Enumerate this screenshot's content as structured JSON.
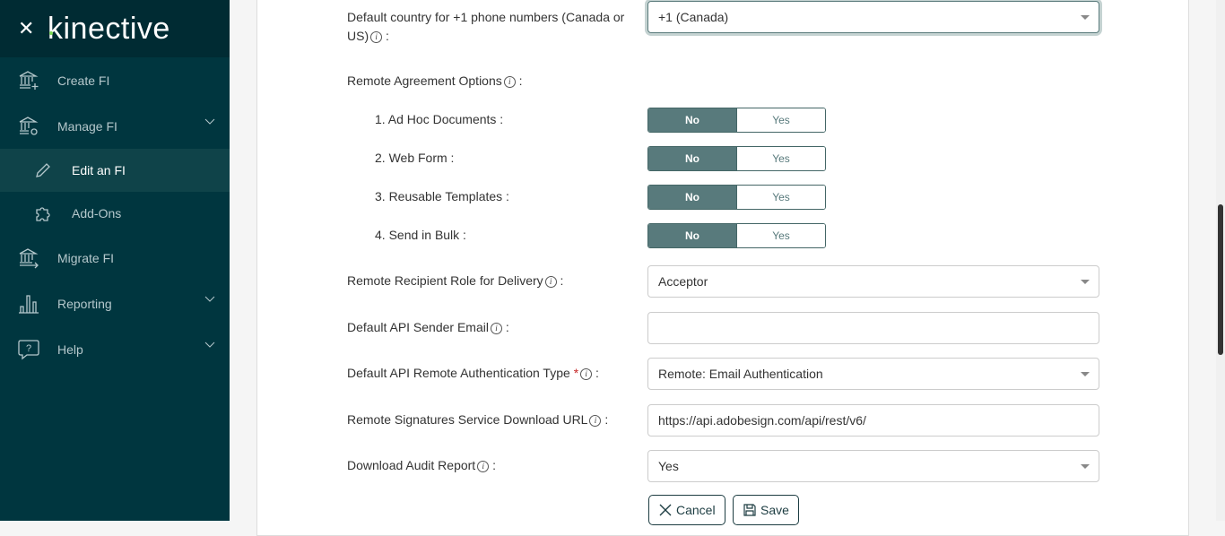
{
  "brand": {
    "name": "kinective",
    "close_icon": "close-icon"
  },
  "sidebar": {
    "items": [
      {
        "label": "Create FI",
        "icon": "bank-plus-icon"
      },
      {
        "label": "Manage FI",
        "icon": "bank-gear-icon",
        "expandable": true
      },
      {
        "label": "Edit an FI",
        "icon": "pencil-icon",
        "active": true
      },
      {
        "label": "Add-Ons",
        "icon": "puzzle-icon"
      },
      {
        "label": "Migrate FI",
        "icon": "bank-arrow-icon"
      },
      {
        "label": "Reporting",
        "icon": "bar-chart-icon",
        "expandable": true
      },
      {
        "label": "Help",
        "icon": "help-icon",
        "expandable": true
      }
    ]
  },
  "form": {
    "country": {
      "label1": "Default country for +1 phone numbers (Canada or",
      "label2": "US)",
      "sep": ":",
      "value": "+1 (Canada)"
    },
    "remote_options": {
      "label": "Remote Agreement Options",
      "sep": ":",
      "items": [
        {
          "label": "1. Ad Hoc Documents :",
          "selected": "No"
        },
        {
          "label": "2. Web Form :",
          "selected": "No"
        },
        {
          "label": "3. Reusable Templates :",
          "selected": "No"
        },
        {
          "label": "4. Send in Bulk :",
          "selected": "No"
        }
      ],
      "no": "No",
      "yes": "Yes"
    },
    "role": {
      "label": "Remote Recipient Role for Delivery",
      "sep": ":",
      "value": "Acceptor"
    },
    "sender_email": {
      "label": "Default API Sender Email",
      "sep": ":",
      "value": ""
    },
    "auth_type": {
      "label": "Default API Remote Authentication Type",
      "required": "*",
      "sep": ":",
      "value": "Remote: Email Authentication"
    },
    "download_url": {
      "label": "Remote Signatures Service Download URL",
      "sep": ":",
      "value": "https://api.adobesign.com/api/rest/v6/"
    },
    "audit": {
      "label": "Download Audit Report",
      "sep": ":",
      "value": "Yes"
    },
    "cancel": "Cancel",
    "save": "Save"
  },
  "colors": {
    "sidebar": "#00363f",
    "toggle_on": "#587a7c"
  }
}
